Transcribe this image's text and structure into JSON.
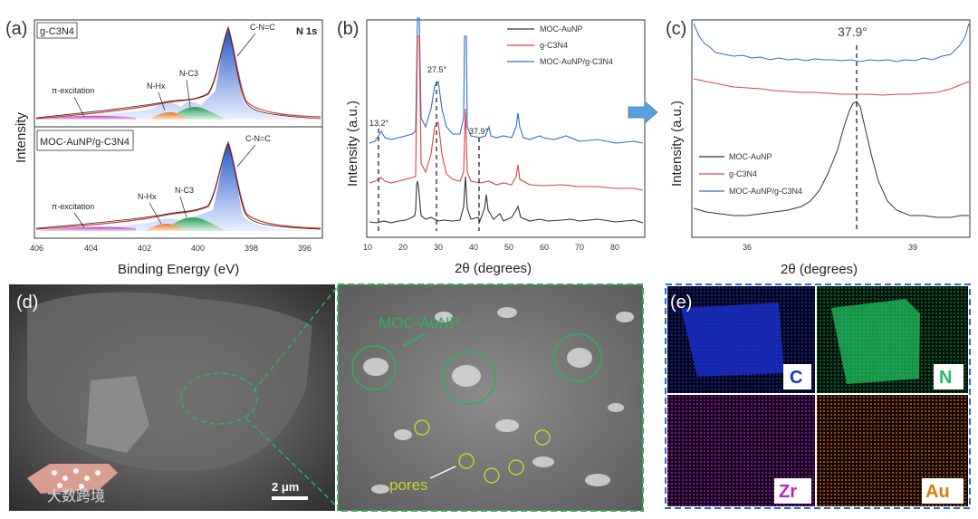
{
  "figure": {
    "panel_labels": [
      "(a)",
      "(b)",
      "(c)",
      "(d)",
      "(e)"
    ],
    "watermark": "大数跨境"
  },
  "panel_a": {
    "top_sample": "g-C3N4",
    "bottom_sample": "MOC-AuNP/g-C3N4",
    "corner_label": "N 1s",
    "ylabel": "Intensity",
    "xlabel": "Binding Energy (eV)",
    "xticks": [
      "406",
      "404",
      "402",
      "400",
      "398",
      "396"
    ],
    "annotations": [
      "C-N=C",
      "N-C3",
      "N-Hx",
      "π-excitation"
    ],
    "colors": {
      "cn": "#2a5fc6",
      "nc3": "#2e9e5b",
      "nh": "#e07a2a",
      "pi": "#b040c0",
      "fit": "#e03030",
      "raw": "#222222"
    }
  },
  "panel_b": {
    "ylabel": "Intensity (a.u.)",
    "xlabel": "2θ (degrees)",
    "xticks": [
      "10",
      "20",
      "30",
      "40",
      "50",
      "60",
      "70",
      "80"
    ],
    "peak_labels": [
      "13.2°",
      "27.5°",
      "37.9°"
    ],
    "legend": [
      "MOC-AuNP",
      "g-C3N4",
      "MOC-AuNP/g-C3N4"
    ],
    "colors": [
      "#333333",
      "#e04040",
      "#2a6fc8"
    ]
  },
  "panel_c": {
    "ylabel": "Intensity (a.u.)",
    "xlabel": "2θ (degrees)",
    "xticks": [
      "36",
      "39"
    ],
    "peak_label": "37.9°",
    "legend": [
      "MOC-AuNP",
      "g-C3N4",
      "MOC-AuNP/g-C3N4"
    ]
  },
  "panel_d": {
    "scale_bar": "2 μm",
    "particle_label": "MOC-AuNP",
    "pores_label": "pores"
  },
  "panel_e": {
    "elements": [
      {
        "symbol": "C",
        "color": "#1a2fd0"
      },
      {
        "symbol": "N",
        "color": "#20c060"
      },
      {
        "symbol": "Zr",
        "color": "#c020c0"
      },
      {
        "symbol": "Au",
        "color": "#e07a10"
      }
    ]
  }
}
